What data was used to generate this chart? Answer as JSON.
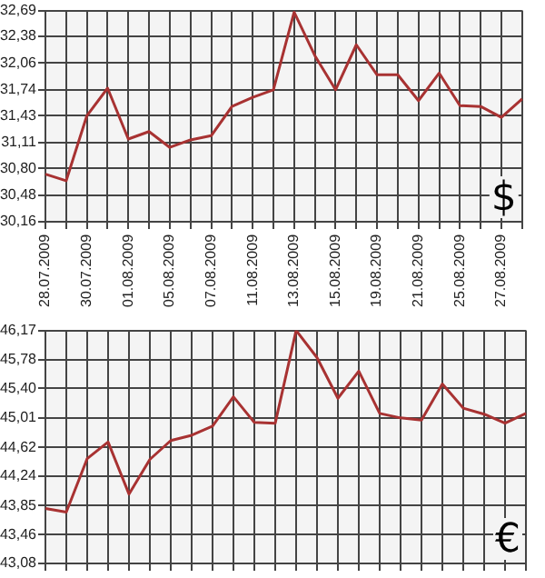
{
  "chart_data": [
    {
      "type": "line",
      "categories": [
        "28.07.2009",
        null,
        "30.07.2009",
        null,
        "01.08.2009",
        null,
        "05.08.2009",
        null,
        "07.08.2009",
        null,
        "11.08.2009",
        null,
        "13.08.2009",
        null,
        "15.08.2009",
        null,
        "19.08.2009",
        null,
        "21.08.2009",
        null,
        "25.08.2009",
        null,
        "27.08.2009",
        null
      ],
      "series": [
        {
          "color": "#a83232",
          "values": [
            30.73,
            30.65,
            31.43,
            31.76,
            31.15,
            31.24,
            31.05,
            31.14,
            31.19,
            31.54,
            31.65,
            31.74,
            32.67,
            32.15,
            31.74,
            32.28,
            31.92,
            31.92,
            31.61,
            31.94,
            31.55,
            31.54,
            31.41,
            31.63
          ]
        }
      ],
      "ylim": [
        30.16,
        32.69
      ],
      "yticks": [
        {
          "value": 30.16,
          "label": "30,16"
        },
        {
          "value": 30.48,
          "label": "30,48"
        },
        {
          "value": 30.8,
          "label": "30,80"
        },
        {
          "value": 31.11,
          "label": "31,11"
        },
        {
          "value": 31.43,
          "label": "31,43"
        },
        {
          "value": 31.74,
          "label": "31,74"
        },
        {
          "value": 32.06,
          "label": "32,06"
        },
        {
          "value": 32.38,
          "label": "32,38"
        },
        {
          "value": 32.69,
          "label": "32,69"
        }
      ],
      "grid": true,
      "marker": "none",
      "annotations": [
        "$"
      ]
    },
    {
      "type": "line",
      "categories": [
        "28.07.2009",
        null,
        "30.07.2009",
        null,
        "01.08.2009",
        null,
        "05.08.2009",
        null,
        "07.08.2009",
        null,
        "11.08.2009",
        null,
        "13.08.2009",
        null,
        "15.08.2009",
        null,
        "19.08.2009",
        null,
        "21.08.2009",
        null,
        "25.08.2009",
        null,
        "27.08.2009",
        null
      ],
      "series": [
        {
          "color": "#a83232",
          "values": [
            43.81,
            43.76,
            44.47,
            44.69,
            44.0,
            44.46,
            44.71,
            44.78,
            44.9,
            45.29,
            44.95,
            44.94,
            46.17,
            45.81,
            45.27,
            45.63,
            45.07,
            45.01,
            44.98,
            45.46,
            45.14,
            45.06,
            44.94,
            45.07
          ]
        }
      ],
      "ylim": [
        43.08,
        46.17
      ],
      "yticks": [
        {
          "value": 43.08,
          "label": "43,08"
        },
        {
          "value": 43.46,
          "label": "43,46"
        },
        {
          "value": 43.85,
          "label": "43,85"
        },
        {
          "value": 44.24,
          "label": "44,24"
        },
        {
          "value": 44.62,
          "label": "44,62"
        },
        {
          "value": 45.01,
          "label": "45,01"
        },
        {
          "value": 45.4,
          "label": "45,40"
        },
        {
          "value": 45.78,
          "label": "45,78"
        },
        {
          "value": 46.17,
          "label": "46,17"
        }
      ],
      "grid": true,
      "marker": "none",
      "tick_labels": "y",
      "annotations": [
        "€"
      ]
    }
  ]
}
